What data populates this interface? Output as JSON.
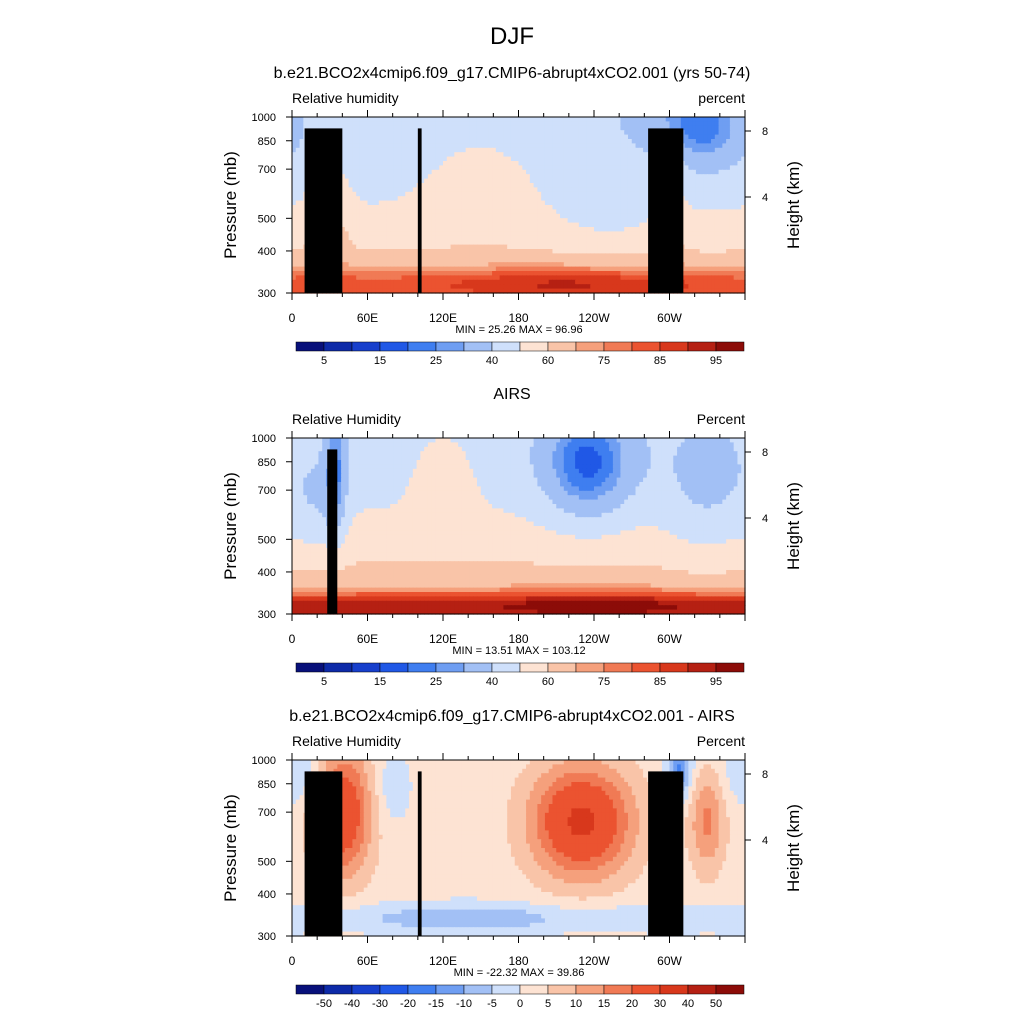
{
  "page": {
    "title": "DJF"
  },
  "chart_data": [
    {
      "type": "heatmap",
      "title": "b.e21.BCO2x4cmip6.f09_g17.CMIP6-abrupt4xCO2.001 (yrs 50-74)",
      "left_label": "Relative humidity",
      "right_label": "percent",
      "ylabel": "Pressure (mb)",
      "y2label": "Height (km)",
      "x_ticks": [
        "0",
        "60E",
        "120E",
        "180",
        "120W",
        "60W"
      ],
      "y_ticks": [
        "300",
        "400",
        "500",
        "700",
        "850",
        "1000"
      ],
      "y2_ticks": [
        "8",
        "4"
      ],
      "x_range": [
        0,
        360
      ],
      "ylim": [
        1000,
        300
      ],
      "stats": "MIN =  25.26  MAX =  96.96",
      "colorbar": {
        "levels": [
          5,
          10,
          15,
          20,
          25,
          30,
          40,
          50,
          60,
          70,
          75,
          80,
          85,
          90,
          95
        ],
        "labels": [
          "5",
          "15",
          "25",
          "40",
          "60",
          "75",
          "85",
          "95"
        ],
        "colors": [
          "#08107a",
          "#0d2aa8",
          "#173fcc",
          "#2058e6",
          "#3f7ef0",
          "#6f9ef2",
          "#a2c0f5",
          "#cfe0fb",
          "#fde3d3",
          "#f9c4a8",
          "#f5a07c",
          "#f07a55",
          "#eb5330",
          "#d8381c",
          "#b52013",
          "#8c0c08"
        ]
      },
      "range": [
        25.26,
        96.96
      ],
      "colormap": "positive",
      "land": [
        {
          "x0": 10,
          "x1": 40,
          "p": 925
        },
        {
          "x0": 28,
          "x1": 35,
          "p": 870
        },
        {
          "x0": 100,
          "x1": 103,
          "p": 925
        },
        {
          "x0": 283,
          "x1": 311,
          "p": 925
        }
      ]
    },
    {
      "type": "heatmap",
      "title": "AIRS",
      "left_label": "Relative Humidity",
      "right_label": "Percent",
      "ylabel": "Pressure (mb)",
      "y2label": "Height (km)",
      "x_ticks": [
        "0",
        "60E",
        "120E",
        "180",
        "120W",
        "60W"
      ],
      "y_ticks": [
        "300",
        "400",
        "500",
        "700",
        "850",
        "1000"
      ],
      "y2_ticks": [
        "8",
        "4"
      ],
      "x_range": [
        0,
        360
      ],
      "ylim": [
        1000,
        300
      ],
      "stats": "MIN =  13.51  MAX = 103.12",
      "colorbar": {
        "levels": [
          5,
          10,
          15,
          20,
          25,
          30,
          40,
          50,
          60,
          70,
          75,
          80,
          85,
          90,
          95
        ],
        "labels": [
          "5",
          "15",
          "25",
          "40",
          "60",
          "75",
          "85",
          "95"
        ],
        "colors": [
          "#08107a",
          "#0d2aa8",
          "#173fcc",
          "#2058e6",
          "#3f7ef0",
          "#6f9ef2",
          "#a2c0f5",
          "#cfe0fb",
          "#fde3d3",
          "#f9c4a8",
          "#f5a07c",
          "#f07a55",
          "#eb5330",
          "#d8381c",
          "#b52013",
          "#8c0c08"
        ]
      },
      "range": [
        13.51,
        103.12
      ],
      "colormap": "positive",
      "land": [
        {
          "x0": 28,
          "x1": 36,
          "p": 925
        }
      ]
    },
    {
      "type": "heatmap",
      "title": "b.e21.BCO2x4cmip6.f09_g17.CMIP6-abrupt4xCO2.001 - AIRS",
      "left_label": "Relative Humidity",
      "right_label": "Percent",
      "ylabel": "Pressure (mb)",
      "y2label": "Height (km)",
      "x_ticks": [
        "0",
        "60E",
        "120E",
        "180",
        "120W",
        "60W"
      ],
      "y_ticks": [
        "300",
        "400",
        "500",
        "700",
        "850",
        "1000"
      ],
      "y2_ticks": [
        "8",
        "4"
      ],
      "x_range": [
        0,
        360
      ],
      "ylim": [
        1000,
        300
      ],
      "stats": "MIN = -22.32  MAX =  39.86",
      "colorbar": {
        "levels": [
          -50,
          -40,
          -30,
          -20,
          -15,
          -10,
          -5,
          0,
          5,
          10,
          15,
          20,
          30,
          40,
          50
        ],
        "labels": [
          "-50",
          "-40",
          "-30",
          "-20",
          "-15",
          "-10",
          "-5",
          "0",
          "5",
          "10",
          "15",
          "20",
          "30",
          "40",
          "50"
        ],
        "colors": [
          "#08107a",
          "#0d2aa8",
          "#173fcc",
          "#2058e6",
          "#3f7ef0",
          "#6f9ef2",
          "#a2c0f5",
          "#cfe0fb",
          "#fde3d3",
          "#f9c4a8",
          "#f5a07c",
          "#f07a55",
          "#eb5330",
          "#d8381c",
          "#b52013",
          "#8c0c08"
        ]
      },
      "range": [
        -22.32,
        39.86
      ],
      "colormap": "difference",
      "land": [
        {
          "x0": 10,
          "x1": 40,
          "p": 925
        },
        {
          "x0": 28,
          "x1": 35,
          "p": 870
        },
        {
          "x0": 100,
          "x1": 103,
          "p": 925
        },
        {
          "x0": 283,
          "x1": 311,
          "p": 925
        }
      ]
    }
  ]
}
